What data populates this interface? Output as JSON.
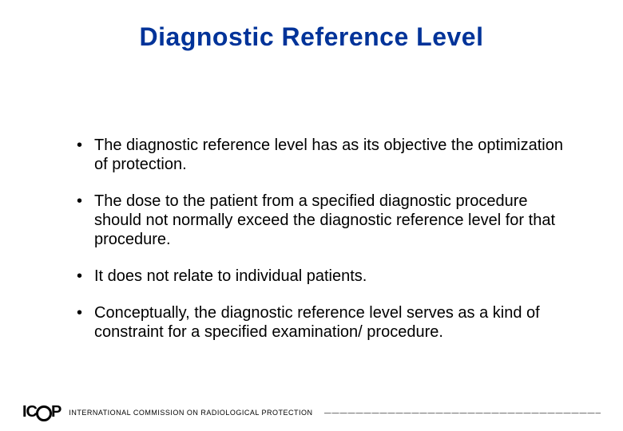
{
  "title": "Diagnostic Reference Level",
  "title_color": "#003399",
  "title_fontsize": 32,
  "body_fontsize": 20,
  "background_color": "#ffffff",
  "bullets": [
    "The diagnostic reference level has as its objective the optimization of protection.",
    "The dose to the patient from a specified diagnostic procedure should not normally exceed the diagnostic reference level for that procedure.",
    "It does not relate to individual patients.",
    "Conceptually, the diagnostic reference level serves as a kind of constraint for a specified examination/ procedure."
  ],
  "footer": {
    "logo_text_left": "IC",
    "logo_text_right": "P",
    "org_text": "INTERNATIONAL COMMISSION ON RADIOLOGICAL PROTECTION",
    "dashes": "——————————————————————————————————————"
  }
}
